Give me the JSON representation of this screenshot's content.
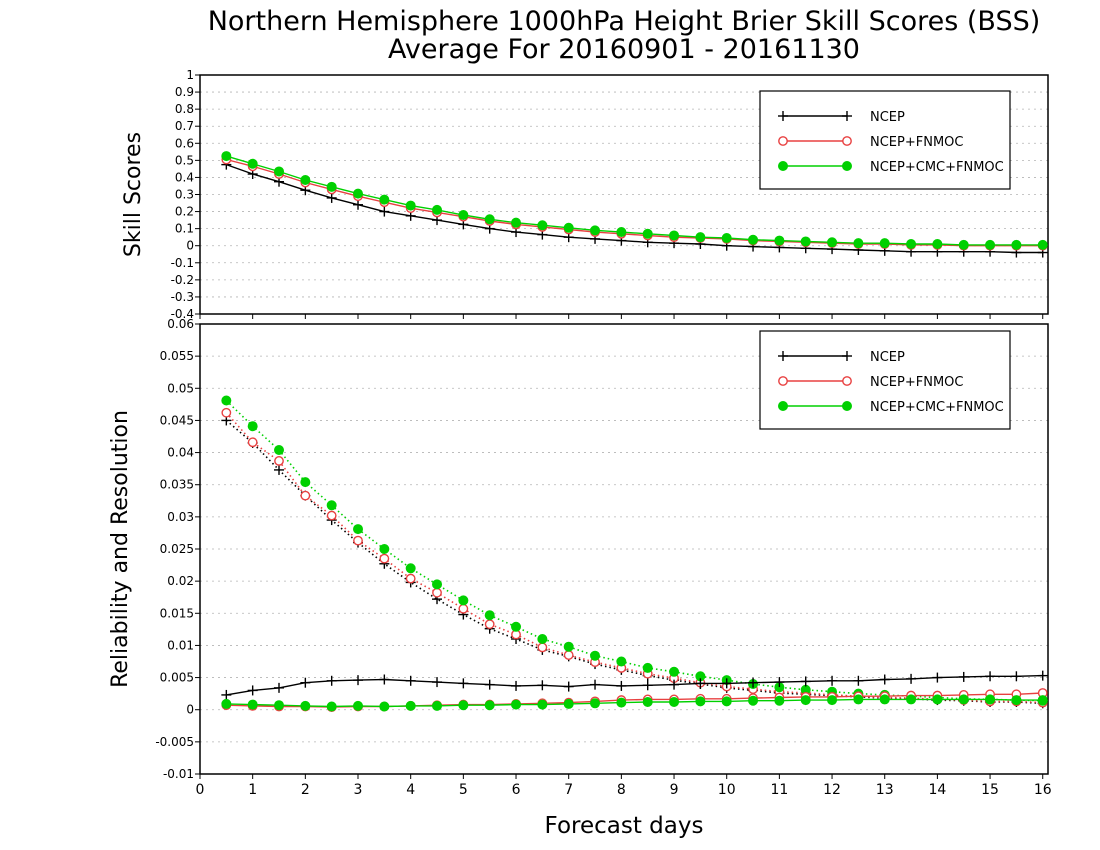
{
  "title_line1": "Northern Hemisphere 1000hPa Height Brier Skill Scores (BSS)",
  "title_line2": "Average For 20160901 - 20161130",
  "xlabel": "Forecast days",
  "x_ticks": [
    "0",
    "1",
    "2",
    "3",
    "4",
    "5",
    "6",
    "7",
    "8",
    "9",
    "10",
    "11",
    "12",
    "13",
    "14",
    "15",
    "16"
  ],
  "colors": {
    "NCEP": "#000000",
    "NCEP+FNMOC": "#e84040",
    "NCEP+CMC+FNMOC": "#00d000"
  },
  "chart_data": [
    {
      "type": "line",
      "ylabel": "Skill Scores",
      "xlim": [
        0,
        16.1
      ],
      "ylim": [
        -0.4,
        1
      ],
      "y_ticks": [
        "-0.4",
        "-0.3",
        "-0.2",
        "-0.1",
        "0",
        "0.1",
        "0.2",
        "0.3",
        "0.4",
        "0.5",
        "0.6",
        "0.7",
        "0.8",
        "0.9",
        "1"
      ],
      "grid": true,
      "legend_position": "top-right",
      "x": [
        0.5,
        1,
        1.5,
        2,
        2.5,
        3,
        3.5,
        4,
        4.5,
        5,
        5.5,
        6,
        6.5,
        7,
        7.5,
        8,
        8.5,
        9,
        9.5,
        10,
        10.5,
        11,
        11.5,
        12,
        12.5,
        13,
        13.5,
        14,
        14.5,
        15,
        15.5,
        16
      ],
      "series": [
        {
          "name": "NCEP",
          "marker": "plus",
          "values": [
            0.475,
            0.42,
            0.375,
            0.325,
            0.28,
            0.24,
            0.2,
            0.175,
            0.15,
            0.125,
            0.1,
            0.08,
            0.065,
            0.05,
            0.04,
            0.03,
            0.02,
            0.015,
            0.01,
            0.0,
            -0.005,
            -0.01,
            -0.015,
            -0.02,
            -0.025,
            -0.03,
            -0.035,
            -0.035,
            -0.035,
            -0.035,
            -0.04,
            -0.04
          ]
        },
        {
          "name": "NCEP+FNMOC",
          "marker": "circle-open",
          "values": [
            0.505,
            0.465,
            0.42,
            0.37,
            0.33,
            0.29,
            0.255,
            0.22,
            0.195,
            0.17,
            0.145,
            0.125,
            0.11,
            0.095,
            0.08,
            0.07,
            0.06,
            0.05,
            0.045,
            0.04,
            0.03,
            0.025,
            0.02,
            0.015,
            0.01,
            0.01,
            0.005,
            0.005,
            0.0,
            0.0,
            0.0,
            0.0
          ]
        },
        {
          "name": "NCEP+CMC+FNMOC",
          "marker": "circle-filled",
          "values": [
            0.525,
            0.48,
            0.435,
            0.385,
            0.345,
            0.305,
            0.27,
            0.235,
            0.21,
            0.18,
            0.155,
            0.135,
            0.12,
            0.105,
            0.09,
            0.08,
            0.07,
            0.06,
            0.05,
            0.045,
            0.035,
            0.03,
            0.025,
            0.02,
            0.015,
            0.015,
            0.01,
            0.01,
            0.005,
            0.005,
            0.005,
            0.005
          ]
        }
      ]
    },
    {
      "type": "line",
      "ylabel": "Reliability and Resolution",
      "xlim": [
        0,
        16.1
      ],
      "ylim": [
        -0.01,
        0.06
      ],
      "y_ticks": [
        "-0.01",
        "-0.005",
        "0",
        "0.005",
        "0.01",
        "0.015",
        "0.02",
        "0.025",
        "0.03",
        "0.035",
        "0.04",
        "0.045",
        "0.05",
        "0.055",
        "0.06"
      ],
      "grid": true,
      "legend_position": "top-right",
      "x": [
        0.5,
        1,
        1.5,
        2,
        2.5,
        3,
        3.5,
        4,
        4.5,
        5,
        5.5,
        6,
        6.5,
        7,
        7.5,
        8,
        8.5,
        9,
        9.5,
        10,
        10.5,
        11,
        11.5,
        12,
        12.5,
        13,
        13.5,
        14,
        14.5,
        15,
        15.5,
        16
      ],
      "series": [
        {
          "name": "NCEP",
          "group": "resolution",
          "marker": "plus",
          "style": "dotted",
          "values": [
            0.045,
            0.0415,
            0.0373,
            0.0333,
            0.0295,
            0.026,
            0.0227,
            0.0198,
            0.0172,
            0.0148,
            0.0126,
            0.011,
            0.0093,
            0.0083,
            0.0071,
            0.0062,
            0.0053,
            0.0046,
            0.004,
            0.0034,
            0.003,
            0.0026,
            0.0024,
            0.0022,
            0.002,
            0.0018,
            0.0017,
            0.0015,
            0.0014,
            0.0012,
            0.0012,
            0.001
          ]
        },
        {
          "name": "NCEP+FNMOC",
          "group": "resolution",
          "marker": "circle-open",
          "style": "dotted",
          "values": [
            0.0462,
            0.0416,
            0.0387,
            0.0333,
            0.0302,
            0.0263,
            0.0235,
            0.0204,
            0.0182,
            0.0157,
            0.0133,
            0.0117,
            0.0097,
            0.0085,
            0.0074,
            0.0065,
            0.0056,
            0.0049,
            0.0042,
            0.0036,
            0.0032,
            0.0028,
            0.0026,
            0.0023,
            0.0021,
            0.0019,
            0.0018,
            0.0016,
            0.0015,
            0.0013,
            0.0013,
            0.0011
          ]
        },
        {
          "name": "NCEP+CMC+FNMOC",
          "group": "resolution",
          "marker": "circle-filled",
          "style": "dotted",
          "values": [
            0.0481,
            0.0441,
            0.0404,
            0.0354,
            0.0318,
            0.0281,
            0.025,
            0.022,
            0.0195,
            0.017,
            0.0147,
            0.0129,
            0.011,
            0.0098,
            0.0084,
            0.0075,
            0.0065,
            0.0059,
            0.0052,
            0.0046,
            0.004,
            0.0035,
            0.0031,
            0.0028,
            0.0025,
            0.0023,
            0.0021,
            0.0019,
            0.0017,
            0.0016,
            0.0015,
            0.0014
          ]
        },
        {
          "name": "NCEP",
          "group": "reliability",
          "marker": "plus",
          "style": "solid",
          "values": [
            0.0023,
            0.003,
            0.0034,
            0.0042,
            0.0045,
            0.0046,
            0.0047,
            0.0045,
            0.0043,
            0.0041,
            0.0039,
            0.0037,
            0.0038,
            0.0036,
            0.0039,
            0.0037,
            0.0038,
            0.0039,
            0.0041,
            0.0041,
            0.0042,
            0.0043,
            0.0044,
            0.0045,
            0.0045,
            0.0047,
            0.0048,
            0.005,
            0.0051,
            0.0052,
            0.0052,
            0.0053
          ]
        },
        {
          "name": "NCEP+FNMOC",
          "group": "reliability",
          "marker": "circle-open",
          "style": "solid",
          "values": [
            0.0007,
            0.0006,
            0.0005,
            0.0005,
            0.0004,
            0.0005,
            0.0005,
            0.0006,
            0.0007,
            0.0008,
            0.0008,
            0.0009,
            0.001,
            0.0011,
            0.0013,
            0.0015,
            0.0016,
            0.0016,
            0.0017,
            0.0017,
            0.0018,
            0.0019,
            0.002,
            0.002,
            0.0021,
            0.0021,
            0.0022,
            0.0022,
            0.0023,
            0.0024,
            0.0024,
            0.0026
          ]
        },
        {
          "name": "NCEP+CMC+FNMOC",
          "group": "reliability",
          "marker": "circle-filled",
          "style": "solid",
          "values": [
            0.0009,
            0.0008,
            0.0007,
            0.0006,
            0.0005,
            0.0006,
            0.0005,
            0.0006,
            0.0006,
            0.0007,
            0.0007,
            0.0008,
            0.0008,
            0.0009,
            0.001,
            0.0011,
            0.0012,
            0.0012,
            0.0013,
            0.0013,
            0.0014,
            0.0014,
            0.0015,
            0.0015,
            0.0016,
            0.0016,
            0.0016,
            0.0016,
            0.0016,
            0.0016,
            0.0015,
            0.0015
          ]
        }
      ]
    }
  ]
}
